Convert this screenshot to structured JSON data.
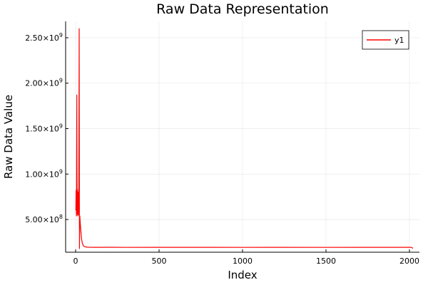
{
  "chart_data": {
    "type": "line",
    "title": "Raw Data Representation",
    "xlabel": "Index",
    "ylabel": "Raw Data Value",
    "xlim": [
      -60,
      2060
    ],
    "ylim": [
      140000000,
      2680000000
    ],
    "x_ticks": [
      {
        "value": 0,
        "label": "0"
      },
      {
        "value": 500,
        "label": "500"
      },
      {
        "value": 1000,
        "label": "1000"
      },
      {
        "value": 1500,
        "label": "1500"
      },
      {
        "value": 2000,
        "label": "2000"
      }
    ],
    "y_ticks": [
      {
        "value": 500000000,
        "mantissa": "5.00",
        "exponent": "8"
      },
      {
        "value": 1000000000,
        "mantissa": "1.00",
        "exponent": "9"
      },
      {
        "value": 1500000000,
        "mantissa": "1.50",
        "exponent": "9"
      },
      {
        "value": 2000000000,
        "mantissa": "2.00",
        "exponent": "9"
      },
      {
        "value": 2500000000,
        "mantissa": "2.50",
        "exponent": "9"
      }
    ],
    "grid": true,
    "legend_position": "top-right",
    "series": [
      {
        "name": "y1",
        "color": "#ff0000",
        "x": [
          1,
          3,
          5,
          7,
          9,
          11,
          13,
          15,
          17,
          19,
          21,
          23,
          25,
          27,
          30,
          33,
          36,
          40,
          45,
          50,
          60,
          70,
          80,
          100,
          150,
          200,
          300,
          500,
          800,
          1000,
          1200,
          1500,
          1800,
          2000,
          2010,
          2015,
          2020
        ],
        "values": [
          600000000,
          820000000,
          540000000,
          1870000000,
          560000000,
          830000000,
          540000000,
          800000000,
          550000000,
          820000000,
          2600000000,
          180000000,
          540000000,
          470000000,
          400000000,
          330000000,
          280000000,
          240000000,
          215000000,
          205000000,
          198000000,
          196000000,
          195000000,
          194000000,
          194000000,
          195000000,
          193000000,
          194000000,
          194000000,
          193000000,
          194000000,
          193000000,
          194000000,
          194000000,
          193000000,
          192000000,
          180000000
        ]
      }
    ]
  }
}
